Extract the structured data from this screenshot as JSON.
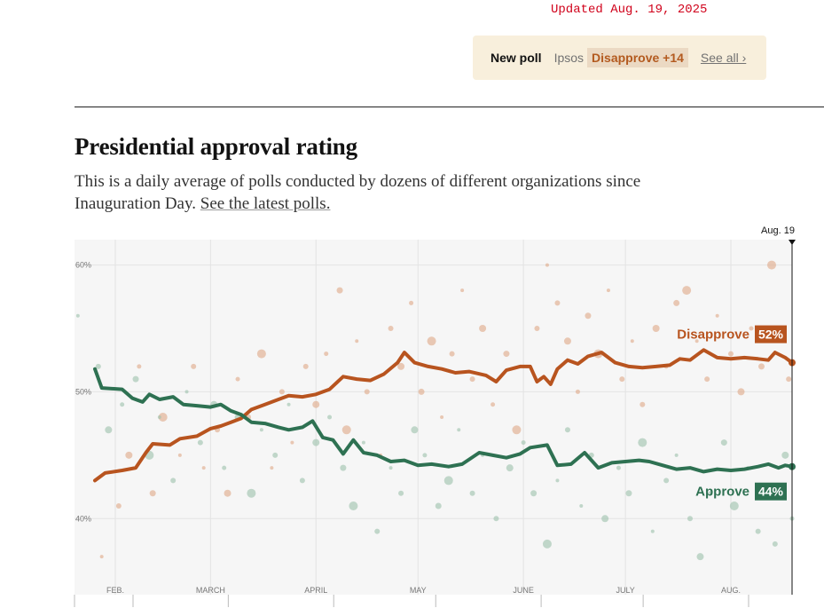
{
  "updated": "Updated Aug. 19, 2025",
  "new_poll": {
    "label": "New poll",
    "pollster": "Ipsos",
    "margin": "Disapprove +14",
    "see_all": "See all ›"
  },
  "title": "Presidential approval rating",
  "description": "This is a daily average of polls conducted by dozens of different organizations since Inauguration Day.",
  "description_link": "See the latest polls.",
  "colors": {
    "disapprove": "#b8541f",
    "approve": "#2e7152",
    "disapprove_dot": "#e0a887",
    "approve_dot": "#9cc2ac"
  },
  "chart_data": {
    "type": "line",
    "xlim": [
      "2025-01-20",
      "2025-08-19"
    ],
    "ylim": [
      34,
      62
    ],
    "y_ticks": [
      60,
      50,
      40
    ],
    "y_tick_labels": [
      "60%",
      "50%",
      "40%"
    ],
    "x_ticks": [
      {
        "date": "2025-02-01",
        "label": "FEB."
      },
      {
        "date": "2025-03-01",
        "label": "MARCH"
      },
      {
        "date": "2025-04-01",
        "label": "APRIL"
      },
      {
        "date": "2025-05-01",
        "label": "MAY"
      },
      {
        "date": "2025-06-01",
        "label": "JUNE"
      },
      {
        "date": "2025-07-01",
        "label": "JULY"
      },
      {
        "date": "2025-08-01",
        "label": "AUG."
      }
    ],
    "current_date_label": "Aug. 19",
    "series": [
      {
        "name": "Disapprove",
        "latest_label": "52%",
        "points": [
          [
            "2025-01-26",
            43.0
          ],
          [
            "2025-01-29",
            43.6
          ],
          [
            "2025-02-03",
            43.8
          ],
          [
            "2025-02-07",
            44.0
          ],
          [
            "2025-02-10",
            45.2
          ],
          [
            "2025-02-12",
            45.9
          ],
          [
            "2025-02-17",
            45.8
          ],
          [
            "2025-02-20",
            46.3
          ],
          [
            "2025-02-25",
            46.5
          ],
          [
            "2025-03-01",
            47.1
          ],
          [
            "2025-03-04",
            47.3
          ],
          [
            "2025-03-07",
            47.6
          ],
          [
            "2025-03-10",
            47.9
          ],
          [
            "2025-03-13",
            48.6
          ],
          [
            "2025-03-17",
            49.0
          ],
          [
            "2025-03-21",
            49.4
          ],
          [
            "2025-03-24",
            49.7
          ],
          [
            "2025-03-28",
            49.6
          ],
          [
            "2025-04-01",
            49.8
          ],
          [
            "2025-04-05",
            50.2
          ],
          [
            "2025-04-09",
            51.2
          ],
          [
            "2025-04-13",
            51.0
          ],
          [
            "2025-04-17",
            50.9
          ],
          [
            "2025-04-21",
            51.4
          ],
          [
            "2025-04-25",
            52.3
          ],
          [
            "2025-04-27",
            53.1
          ],
          [
            "2025-04-30",
            52.3
          ],
          [
            "2025-05-04",
            52.0
          ],
          [
            "2025-05-08",
            51.8
          ],
          [
            "2025-05-12",
            51.5
          ],
          [
            "2025-05-16",
            51.6
          ],
          [
            "2025-05-21",
            51.3
          ],
          [
            "2025-05-24",
            50.8
          ],
          [
            "2025-05-27",
            51.7
          ],
          [
            "2025-05-31",
            52.0
          ],
          [
            "2025-06-03",
            52.0
          ],
          [
            "2025-06-05",
            50.8
          ],
          [
            "2025-06-07",
            51.2
          ],
          [
            "2025-06-09",
            50.6
          ],
          [
            "2025-06-11",
            51.8
          ],
          [
            "2025-06-14",
            52.5
          ],
          [
            "2025-06-17",
            52.2
          ],
          [
            "2025-06-20",
            52.8
          ],
          [
            "2025-06-24",
            53.1
          ],
          [
            "2025-06-28",
            52.3
          ],
          [
            "2025-07-02",
            52.0
          ],
          [
            "2025-07-06",
            51.9
          ],
          [
            "2025-07-10",
            52.0
          ],
          [
            "2025-07-14",
            52.1
          ],
          [
            "2025-07-17",
            52.6
          ],
          [
            "2025-07-20",
            52.5
          ],
          [
            "2025-07-24",
            53.3
          ],
          [
            "2025-07-28",
            52.7
          ],
          [
            "2025-08-01",
            52.6
          ],
          [
            "2025-08-05",
            52.7
          ],
          [
            "2025-08-09",
            52.6
          ],
          [
            "2025-08-12",
            52.5
          ],
          [
            "2025-08-14",
            53.1
          ],
          [
            "2025-08-17",
            52.7
          ],
          [
            "2025-08-19",
            52.3
          ]
        ]
      },
      {
        "name": "Approve",
        "latest_label": "44%",
        "points": [
          [
            "2025-01-26",
            51.8
          ],
          [
            "2025-01-28",
            50.3
          ],
          [
            "2025-02-03",
            50.2
          ],
          [
            "2025-02-06",
            49.5
          ],
          [
            "2025-02-09",
            49.2
          ],
          [
            "2025-02-11",
            49.8
          ],
          [
            "2025-02-14",
            49.4
          ],
          [
            "2025-02-18",
            49.6
          ],
          [
            "2025-02-21",
            49.0
          ],
          [
            "2025-02-25",
            48.9
          ],
          [
            "2025-03-01",
            48.8
          ],
          [
            "2025-03-04",
            49.0
          ],
          [
            "2025-03-07",
            48.5
          ],
          [
            "2025-03-10",
            48.2
          ],
          [
            "2025-03-13",
            47.6
          ],
          [
            "2025-03-17",
            47.5
          ],
          [
            "2025-03-21",
            47.2
          ],
          [
            "2025-03-24",
            47.0
          ],
          [
            "2025-03-28",
            47.2
          ],
          [
            "2025-03-31",
            47.7
          ],
          [
            "2025-04-03",
            46.4
          ],
          [
            "2025-04-06",
            46.2
          ],
          [
            "2025-04-09",
            45.1
          ],
          [
            "2025-04-12",
            46.2
          ],
          [
            "2025-04-15",
            45.2
          ],
          [
            "2025-04-19",
            45.0
          ],
          [
            "2025-04-23",
            44.5
          ],
          [
            "2025-04-27",
            44.6
          ],
          [
            "2025-05-01",
            44.2
          ],
          [
            "2025-05-05",
            44.3
          ],
          [
            "2025-05-10",
            44.1
          ],
          [
            "2025-05-14",
            44.3
          ],
          [
            "2025-05-19",
            45.2
          ],
          [
            "2025-05-23",
            45.0
          ],
          [
            "2025-05-27",
            44.8
          ],
          [
            "2025-05-31",
            45.1
          ],
          [
            "2025-06-03",
            45.6
          ],
          [
            "2025-06-08",
            45.8
          ],
          [
            "2025-06-11",
            44.2
          ],
          [
            "2025-06-15",
            44.3
          ],
          [
            "2025-06-19",
            45.2
          ],
          [
            "2025-06-23",
            44.0
          ],
          [
            "2025-06-27",
            44.4
          ],
          [
            "2025-07-01",
            44.5
          ],
          [
            "2025-07-05",
            44.6
          ],
          [
            "2025-07-08",
            44.5
          ],
          [
            "2025-07-12",
            44.2
          ],
          [
            "2025-07-16",
            43.9
          ],
          [
            "2025-07-20",
            44.0
          ],
          [
            "2025-07-24",
            43.7
          ],
          [
            "2025-07-28",
            43.9
          ],
          [
            "2025-08-01",
            43.8
          ],
          [
            "2025-08-05",
            43.9
          ],
          [
            "2025-08-09",
            44.1
          ],
          [
            "2025-08-12",
            44.3
          ],
          [
            "2025-08-15",
            44.0
          ],
          [
            "2025-08-17",
            44.2
          ],
          [
            "2025-08-19",
            44.1
          ]
        ]
      }
    ],
    "polls": {
      "disapprove": [
        [
          "2025-01-28",
          37
        ],
        [
          "2025-02-02",
          41
        ],
        [
          "2025-02-05",
          45
        ],
        [
          "2025-02-08",
          52
        ],
        [
          "2025-02-12",
          42
        ],
        [
          "2025-02-15",
          48
        ],
        [
          "2025-02-20",
          45
        ],
        [
          "2025-02-24",
          52
        ],
        [
          "2025-02-27",
          44
        ],
        [
          "2025-03-03",
          47
        ],
        [
          "2025-03-06",
          42
        ],
        [
          "2025-03-09",
          51
        ],
        [
          "2025-03-12",
          48
        ],
        [
          "2025-03-16",
          53
        ],
        [
          "2025-03-19",
          44
        ],
        [
          "2025-03-22",
          50
        ],
        [
          "2025-03-25",
          46
        ],
        [
          "2025-03-29",
          52
        ],
        [
          "2025-04-01",
          49
        ],
        [
          "2025-04-04",
          53
        ],
        [
          "2025-04-08",
          58
        ],
        [
          "2025-04-10",
          47
        ],
        [
          "2025-04-13",
          54
        ],
        [
          "2025-04-16",
          50
        ],
        [
          "2025-04-20",
          45
        ],
        [
          "2025-04-23",
          55
        ],
        [
          "2025-04-26",
          52
        ],
        [
          "2025-04-29",
          57
        ],
        [
          "2025-05-02",
          50
        ],
        [
          "2025-05-05",
          54
        ],
        [
          "2025-05-08",
          48
        ],
        [
          "2025-05-11",
          53
        ],
        [
          "2025-05-14",
          58
        ],
        [
          "2025-05-17",
          51
        ],
        [
          "2025-05-20",
          55
        ],
        [
          "2025-05-23",
          49
        ],
        [
          "2025-05-27",
          53
        ],
        [
          "2025-05-30",
          47
        ],
        [
          "2025-06-02",
          52
        ],
        [
          "2025-06-05",
          55
        ],
        [
          "2025-06-08",
          60
        ],
        [
          "2025-06-11",
          57
        ],
        [
          "2025-06-14",
          54
        ],
        [
          "2025-06-17",
          50
        ],
        [
          "2025-06-20",
          56
        ],
        [
          "2025-06-23",
          53
        ],
        [
          "2025-06-26",
          58
        ],
        [
          "2025-06-30",
          51
        ],
        [
          "2025-07-03",
          54
        ],
        [
          "2025-07-06",
          49
        ],
        [
          "2025-07-10",
          55
        ],
        [
          "2025-07-13",
          52
        ],
        [
          "2025-07-16",
          57
        ],
        [
          "2025-07-19",
          58
        ],
        [
          "2025-07-22",
          54
        ],
        [
          "2025-07-25",
          51
        ],
        [
          "2025-07-28",
          56
        ],
        [
          "2025-08-01",
          53
        ],
        [
          "2025-08-04",
          50
        ],
        [
          "2025-08-07",
          55
        ],
        [
          "2025-08-10",
          52
        ],
        [
          "2025-08-13",
          60
        ],
        [
          "2025-08-15",
          54
        ],
        [
          "2025-08-18",
          51
        ]
      ],
      "approve": [
        [
          "2025-01-21",
          56
        ],
        [
          "2025-01-27",
          52
        ],
        [
          "2025-01-30",
          47
        ],
        [
          "2025-02-03",
          49
        ],
        [
          "2025-02-07",
          51
        ],
        [
          "2025-02-11",
          45
        ],
        [
          "2025-02-14",
          48
        ],
        [
          "2025-02-18",
          43
        ],
        [
          "2025-02-22",
          50
        ],
        [
          "2025-02-26",
          46
        ],
        [
          "2025-03-02",
          49
        ],
        [
          "2025-03-05",
          44
        ],
        [
          "2025-03-09",
          48
        ],
        [
          "2025-03-13",
          42
        ],
        [
          "2025-03-16",
          47
        ],
        [
          "2025-03-20",
          45
        ],
        [
          "2025-03-24",
          49
        ],
        [
          "2025-03-28",
          43
        ],
        [
          "2025-04-01",
          46
        ],
        [
          "2025-04-05",
          48
        ],
        [
          "2025-04-09",
          44
        ],
        [
          "2025-04-12",
          41
        ],
        [
          "2025-04-15",
          46
        ],
        [
          "2025-04-19",
          39
        ],
        [
          "2025-04-23",
          44
        ],
        [
          "2025-04-26",
          42
        ],
        [
          "2025-04-30",
          47
        ],
        [
          "2025-05-03",
          45
        ],
        [
          "2025-05-07",
          41
        ],
        [
          "2025-05-10",
          43
        ],
        [
          "2025-05-13",
          47
        ],
        [
          "2025-05-17",
          42
        ],
        [
          "2025-05-20",
          45
        ],
        [
          "2025-05-24",
          40
        ],
        [
          "2025-05-28",
          44
        ],
        [
          "2025-06-01",
          46
        ],
        [
          "2025-06-04",
          42
        ],
        [
          "2025-06-08",
          38
        ],
        [
          "2025-06-11",
          43
        ],
        [
          "2025-06-14",
          47
        ],
        [
          "2025-06-18",
          41
        ],
        [
          "2025-06-21",
          45
        ],
        [
          "2025-06-25",
          40
        ],
        [
          "2025-06-29",
          44
        ],
        [
          "2025-07-02",
          42
        ],
        [
          "2025-07-06",
          46
        ],
        [
          "2025-07-09",
          39
        ],
        [
          "2025-07-13",
          43
        ],
        [
          "2025-07-16",
          45
        ],
        [
          "2025-07-20",
          40
        ],
        [
          "2025-07-23",
          37
        ],
        [
          "2025-07-26",
          42
        ],
        [
          "2025-07-30",
          46
        ],
        [
          "2025-08-02",
          41
        ],
        [
          "2025-08-06",
          44
        ],
        [
          "2025-08-09",
          39
        ],
        [
          "2025-08-12",
          42
        ],
        [
          "2025-08-14",
          38
        ],
        [
          "2025-08-17",
          45
        ],
        [
          "2025-08-19",
          40
        ]
      ]
    }
  }
}
